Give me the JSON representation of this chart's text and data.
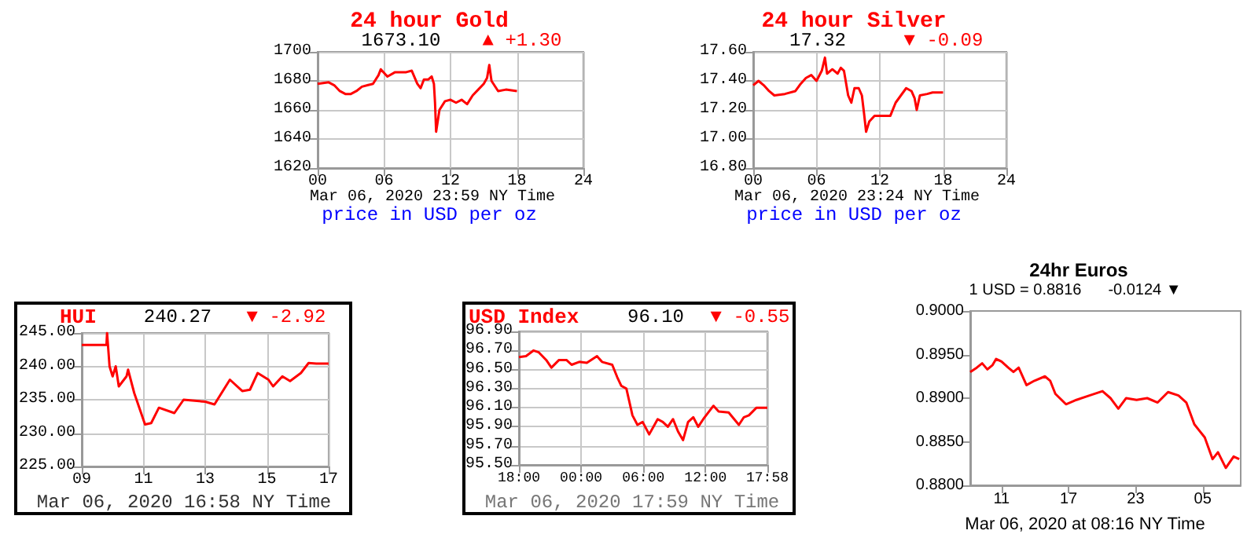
{
  "chart_data": [
    {
      "type": "line",
      "title": "24 hour Gold",
      "subtitle": "1673.10",
      "xlabel": "Mar 06, 2020 23:59 NY Time",
      "annotations": [
        "▲ +1.30",
        "price in USD per oz"
      ],
      "grid": true,
      "x": [
        0,
        1,
        1.5,
        2,
        2.5,
        3,
        3.5,
        4,
        4.5,
        5,
        5.5,
        5.7,
        6.3,
        7,
        8,
        8.5,
        9,
        9.3,
        9.6,
        10,
        10.3,
        10.5,
        10.6,
        10.7,
        11,
        11.5,
        12,
        12.5,
        13,
        13.5,
        14,
        14.5,
        15,
        15.3,
        15.5,
        15.7,
        16.3,
        17,
        18
      ],
      "series": [
        {
          "color": "#ff0000",
          "values": [
            1678,
            1679,
            1677,
            1673,
            1671,
            1671,
            1673,
            1676,
            1677,
            1678,
            1684,
            1688,
            1683,
            1686,
            1686,
            1687,
            1678,
            1675,
            1681,
            1681,
            1683,
            1678,
            1665,
            1645,
            1660,
            1666,
            1667,
            1665,
            1667,
            1664,
            1670,
            1674,
            1678,
            1682,
            1691,
            1680,
            1673,
            1674,
            1673
          ]
        }
      ],
      "xlim": [
        0,
        24
      ],
      "xticks": [
        {
          "value": 0,
          "label": "00"
        },
        {
          "value": 6,
          "label": "06"
        },
        12,
        18,
        24
      ],
      "ylim": [
        1620,
        1700
      ],
      "yticks": [
        1620,
        1640,
        1660,
        1680,
        1700
      ]
    },
    {
      "type": "line",
      "title": "24 hour Silver",
      "subtitle": "17.32",
      "xlabel": "Mar 06, 2020 23:24 NY Time",
      "annotations": [
        "▼ -0.09",
        "price in USD per oz"
      ],
      "grid": true,
      "x": [
        0,
        0.5,
        1,
        1.5,
        2,
        3,
        4,
        4.5,
        5,
        5.5,
        6,
        6.5,
        6.8,
        7,
        7.5,
        8,
        8.3,
        8.6,
        9,
        9.3,
        9.6,
        10,
        10.3,
        10.5,
        10.7,
        11,
        11.5,
        12,
        13,
        13.5,
        14,
        14.5,
        15,
        15.3,
        15.5,
        15.8,
        16.5,
        17,
        18
      ],
      "series": [
        {
          "color": "#ff0000",
          "values": [
            17.37,
            17.4,
            17.37,
            17.33,
            17.3,
            17.31,
            17.33,
            17.38,
            17.42,
            17.44,
            17.4,
            17.47,
            17.56,
            17.45,
            17.48,
            17.45,
            17.49,
            17.47,
            17.3,
            17.25,
            17.35,
            17.35,
            17.3,
            17.18,
            17.05,
            17.12,
            17.16,
            17.16,
            17.16,
            17.25,
            17.3,
            17.35,
            17.33,
            17.28,
            17.2,
            17.3,
            17.31,
            17.32,
            17.32
          ]
        }
      ],
      "xlim": [
        0,
        24
      ],
      "xticks": [
        {
          "value": 0,
          "label": "00"
        },
        {
          "value": 6,
          "label": "06"
        },
        12,
        18,
        24
      ],
      "ylim": [
        16.8,
        17.6
      ],
      "yticks": [
        {
          "value": 16.8,
          "label": "16.80"
        },
        {
          "value": 17,
          "label": "17.00"
        },
        {
          "value": 17.2,
          "label": "17.20"
        },
        {
          "value": 17.4,
          "label": "17.40"
        },
        {
          "value": 17.6,
          "label": "17.60"
        }
      ]
    },
    {
      "type": "line",
      "title": "HUI",
      "subtitle": "240.27",
      "xlabel": "Mar 06, 2020 16:58 NY Time",
      "annotations": [
        "▼ -2.92"
      ],
      "grid": true,
      "x": [
        9,
        9.8,
        9.82,
        9.9,
        10,
        10.1,
        10.2,
        10.45,
        10.5,
        10.7,
        11.05,
        11.25,
        11.5,
        12,
        12.3,
        13,
        13.3,
        13.8,
        14.2,
        14.45,
        14.7,
        15.05,
        15.2,
        15.5,
        15.75,
        16.1,
        16.35,
        16.6,
        17
      ],
      "series": [
        {
          "color": "#ff0000",
          "values": [
            243.2,
            243.2,
            245,
            240,
            238.5,
            240,
            237,
            238.5,
            239.5,
            236,
            231.3,
            231.5,
            233.8,
            233,
            235,
            234.7,
            234.3,
            238,
            236.3,
            236.5,
            239,
            238,
            237,
            238.5,
            237.8,
            239,
            240.5,
            240.4,
            240.4
          ]
        }
      ],
      "xlim": [
        9,
        17
      ],
      "xticks": [
        {
          "value": 9,
          "label": "09"
        },
        11,
        13,
        15,
        17
      ],
      "ylim": [
        225,
        245
      ],
      "yticks": [
        {
          "value": 225,
          "label": "225.00"
        },
        {
          "value": 230,
          "label": "230.00"
        },
        {
          "value": 235,
          "label": "235.00"
        },
        {
          "value": 240,
          "label": "240.00"
        },
        {
          "value": 245,
          "label": "245.00"
        }
      ]
    },
    {
      "type": "line",
      "title": "USD Index",
      "subtitle": "96.10",
      "xlabel": "Mar 06, 2020 17:59 NY Time",
      "annotations": [
        "▼ -0.55"
      ],
      "grid": true,
      "x": [
        "2020-03-05T18:00",
        "2020-03-05T18:41",
        "2020-03-05T19:25",
        "2020-03-05T19:55",
        "2020-03-05T20:38",
        "2020-03-05T21:08",
        "2020-03-05T21:52",
        "2020-03-05T22:35",
        "2020-03-05T23:05",
        "2020-03-05T23:49",
        "2020-03-06T00:33",
        "2020-03-06T01:32",
        "2020-03-06T02:01",
        "2020-03-06T03:00",
        "2020-03-06T03:29",
        "2020-03-06T03:52",
        "2020-03-06T04:22",
        "2020-03-06T04:57",
        "2020-03-06T05:26",
        "2020-03-06T05:56",
        "2020-03-06T06:34",
        "2020-03-06T07:23",
        "2020-03-06T07:53",
        "2020-03-06T08:22",
        "2020-03-06T08:52",
        "2020-03-06T09:21",
        "2020-03-06T09:50",
        "2020-03-06T10:19",
        "2020-03-06T10:49",
        "2020-03-06T11:18",
        "2020-03-06T11:47",
        "2020-03-06T12:46",
        "2020-03-06T13:16",
        "2020-03-06T14:14",
        "2020-03-06T15:13",
        "2020-03-06T15:42",
        "2020-03-06T16:11",
        "2020-03-06T16:55",
        "2020-03-06T17:58"
      ],
      "series": [
        {
          "color": "#ff0000",
          "values": [
            96.63,
            96.64,
            96.7,
            96.68,
            96.6,
            96.52,
            96.6,
            96.6,
            96.55,
            96.58,
            96.57,
            96.64,
            96.58,
            96.55,
            96.42,
            96.33,
            96.3,
            96.02,
            95.92,
            95.95,
            95.82,
            95.98,
            95.95,
            95.9,
            95.98,
            95.85,
            95.76,
            95.95,
            96.0,
            95.9,
            95.98,
            96.12,
            96.06,
            96.05,
            95.92,
            96.0,
            96.02,
            96.1,
            96.1
          ]
        }
      ],
      "xlim": [
        "2020-03-05T18:00",
        "2020-03-06T17:58"
      ],
      "xticks": [
        {
          "value": "2020-03-05T18:00",
          "label": "18:00"
        },
        {
          "value": "2020-03-06T00:00",
          "label": "00:00"
        },
        {
          "value": "2020-03-06T06:00",
          "label": "06:00"
        },
        {
          "value": "2020-03-06T12:00",
          "label": "12:00"
        },
        {
          "value": "2020-03-06T17:58",
          "label": "17:58"
        }
      ],
      "ylim": [
        95.5,
        96.9
      ],
      "yticks": [
        {
          "value": 95.5,
          "label": "95.50"
        },
        {
          "value": 95.7,
          "label": "95.70"
        },
        {
          "value": 95.9,
          "label": "95.90"
        },
        {
          "value": 96.1,
          "label": "96.10"
        },
        {
          "value": 96.3,
          "label": "96.30"
        },
        {
          "value": 96.5,
          "label": "96.50"
        },
        {
          "value": 96.7,
          "label": "96.70"
        },
        {
          "value": 96.9,
          "label": "96.90"
        }
      ]
    },
    {
      "type": "line",
      "title": "24hr Euros",
      "subtitle": "1 USD = 0.8816",
      "xlabel": "Mar 06, 2020 at 08:16 NY Time",
      "annotations": [
        "-0.0124 ▼"
      ],
      "grid": false,
      "x": [
        "2020-03-05T08:12",
        "2020-03-05T08:47",
        "2020-03-05T09:16",
        "2020-03-05T09:44",
        "2020-03-05T10:12",
        "2020-03-05T10:31",
        "2020-03-05T11:00",
        "2020-03-05T11:36",
        "2020-03-05T12:04",
        "2020-03-05T12:32",
        "2020-03-05T13:14",
        "2020-03-05T13:57",
        "2020-03-05T14:53",
        "2020-03-05T15:21",
        "2020-03-05T15:49",
        "2020-03-05T16:46",
        "2020-03-05T17:42",
        "2020-03-05T18:52",
        "2020-03-05T20:02",
        "2020-03-05T20:45",
        "2020-03-05T21:27",
        "2020-03-05T22:09",
        "2020-03-05T23:05",
        "2020-03-06T00:02",
        "2020-03-06T00:58",
        "2020-03-06T01:54",
        "2020-03-06T02:50",
        "2020-03-06T03:32",
        "2020-03-06T04:15",
        "2020-03-06T05:11",
        "2020-03-06T05:53",
        "2020-03-06T06:22",
        "2020-03-06T07:04",
        "2020-03-06T07:46",
        "2020-03-06T08:16"
      ],
      "series": [
        {
          "color": "#ff0000",
          "values": [
            0.893,
            0.8935,
            0.894,
            0.8933,
            0.8938,
            0.8945,
            0.8942,
            0.8935,
            0.893,
            0.8935,
            0.8915,
            0.892,
            0.8925,
            0.892,
            0.8905,
            0.8893,
            0.8898,
            0.8903,
            0.8908,
            0.89,
            0.8888,
            0.89,
            0.8898,
            0.89,
            0.8895,
            0.8907,
            0.8903,
            0.8895,
            0.887,
            0.8855,
            0.883,
            0.8838,
            0.882,
            0.8833,
            0.883
          ]
        }
      ],
      "xlim": [
        "2020-03-05T08:12",
        "2020-03-06T08:24"
      ],
      "xticks": [
        {
          "value": "2020-03-05T11:00",
          "label": "11"
        },
        {
          "value": "2020-03-05T17:00",
          "label": "17"
        },
        {
          "value": "2020-03-05T23:00",
          "label": "23"
        },
        {
          "value": "2020-03-06T05:00",
          "label": "05"
        }
      ],
      "ylim": [
        0.88,
        0.9
      ],
      "yticks": [
        {
          "value": 0.88,
          "label": "0.8800"
        },
        {
          "value": 0.885,
          "label": "0.8850"
        },
        {
          "value": 0.89,
          "label": "0.8900"
        },
        {
          "value": 0.895,
          "label": "0.8950"
        },
        {
          "value": 0.9,
          "label": "0.9000"
        }
      ]
    }
  ]
}
